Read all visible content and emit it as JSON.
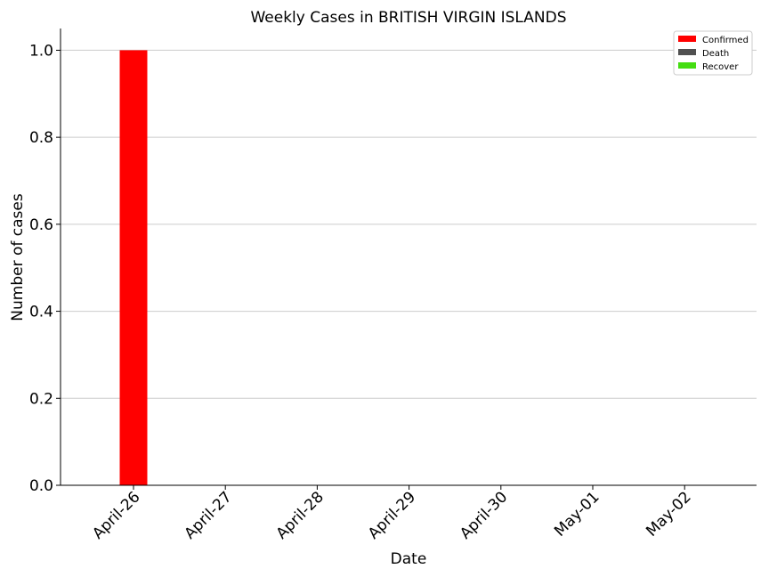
{
  "chart_data": {
    "type": "bar",
    "title": "Weekly Cases in BRITISH VIRGIN ISLANDS",
    "xlabel": "Date",
    "ylabel": "Number of cases",
    "categories": [
      "April-26",
      "April-27",
      "April-28",
      "April-29",
      "April-30",
      "May-01",
      "May-02"
    ],
    "series": [
      {
        "name": "Confirmed",
        "color": "#ff0000",
        "values": [
          1,
          0,
          0,
          0,
          0,
          0,
          0
        ]
      },
      {
        "name": "Death",
        "color": "#505050",
        "values": [
          0,
          0,
          0,
          0,
          0,
          0,
          0
        ]
      },
      {
        "name": "Recover",
        "color": "#44dd11",
        "values": [
          0,
          0,
          0,
          0,
          0,
          0,
          0
        ]
      }
    ],
    "ylim": [
      0,
      1.05
    ],
    "yticks": [
      "0.0",
      "0.2",
      "0.4",
      "0.6",
      "0.8",
      "1.0"
    ],
    "grid": "horizontal",
    "legend_position": "top-right"
  }
}
